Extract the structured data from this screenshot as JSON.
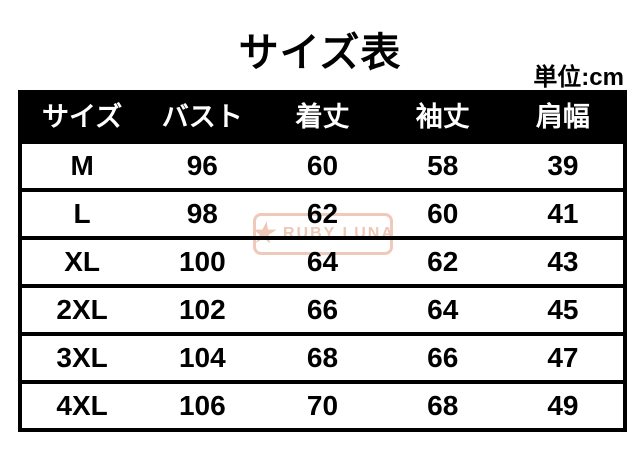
{
  "title": "サイズ表",
  "unit_label": "単位:cm",
  "table": {
    "columns": [
      "サイズ",
      "バスト",
      "着丈",
      "袖丈",
      "肩幅"
    ],
    "rows": [
      {
        "cells": [
          "M",
          "96",
          "60",
          "58",
          "39"
        ]
      },
      {
        "cells": [
          "L",
          "98",
          "62",
          "60",
          "41"
        ]
      },
      {
        "cells": [
          "XL",
          "100",
          "64",
          "62",
          "43"
        ]
      },
      {
        "cells": [
          "2XL",
          "102",
          "66",
          "64",
          "45"
        ]
      },
      {
        "cells": [
          "3XL",
          "104",
          "68",
          "66",
          "47"
        ]
      },
      {
        "cells": [
          "4XL",
          "106",
          "70",
          "68",
          "49"
        ]
      }
    ]
  },
  "watermark": {
    "star_glyph": "★",
    "text": "RUBY LUNA",
    "color": "#eec6b5"
  },
  "colors": {
    "background": "#ffffff",
    "header_bg": "#000000",
    "header_text": "#ffffff",
    "body_text": "#000000",
    "border": "#000000",
    "watermark": "#eec6b5"
  },
  "chart_data": {
    "type": "table",
    "title": "サイズ表",
    "unit": "cm",
    "columns": [
      "サイズ",
      "バスト",
      "着丈",
      "袖丈",
      "肩幅"
    ],
    "rows": [
      [
        "M",
        96,
        60,
        58,
        39
      ],
      [
        "L",
        98,
        62,
        60,
        41
      ],
      [
        "XL",
        100,
        64,
        62,
        43
      ],
      [
        "2XL",
        102,
        66,
        64,
        45
      ],
      [
        "3XL",
        104,
        68,
        66,
        47
      ],
      [
        "4XL",
        106,
        70,
        68,
        49
      ]
    ]
  }
}
